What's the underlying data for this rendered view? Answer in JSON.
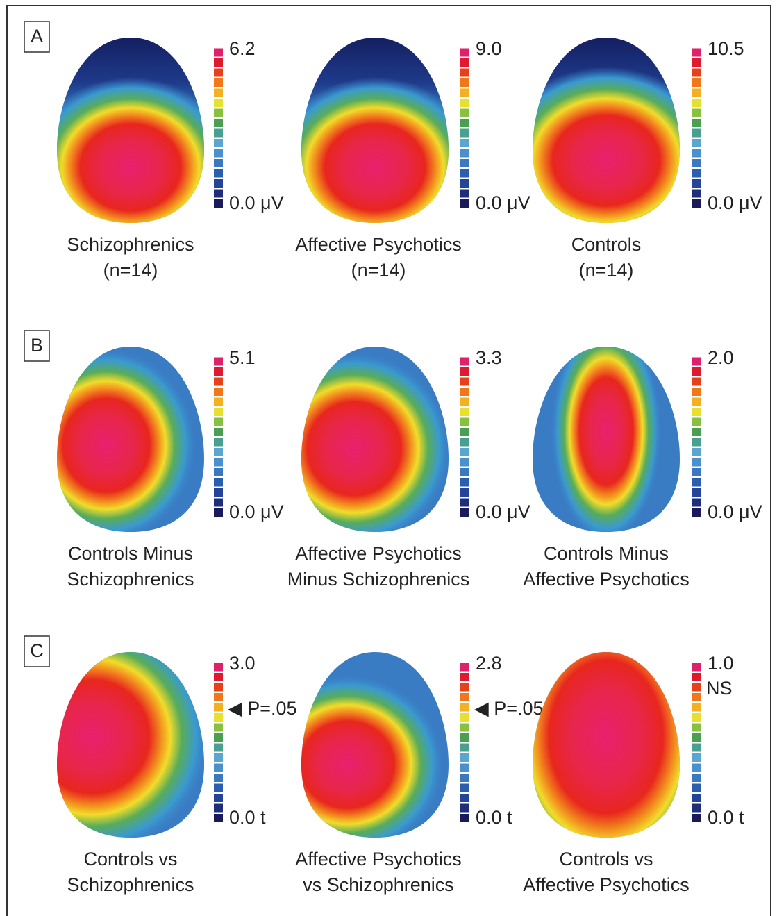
{
  "panels": [
    {
      "label": "A",
      "maps": [
        {
          "scale_max": "6.2",
          "scale_min": "0.0 μV",
          "caption": [
            "Schizophrenics",
            "(n=14)"
          ]
        },
        {
          "scale_max": "9.0",
          "scale_min": "0.0 μV",
          "caption": [
            "Affective Psychotics",
            "(n=14)"
          ]
        },
        {
          "scale_max": "10.5",
          "scale_min": "0.0 μV",
          "caption": [
            "Controls",
            "(n=14)"
          ]
        }
      ]
    },
    {
      "label": "B",
      "maps": [
        {
          "scale_max": "5.1",
          "scale_min": "0.0 μV",
          "caption": [
            "Controls Minus",
            "Schizophrenics"
          ]
        },
        {
          "scale_max": "3.3",
          "scale_min": "0.0 μV",
          "caption": [
            "Affective Psychotics",
            "Minus Schizophrenics"
          ]
        },
        {
          "scale_max": "2.0",
          "scale_min": "0.0 μV",
          "caption": [
            "Controls Minus",
            "Affective Psychotics"
          ]
        }
      ]
    },
    {
      "label": "C",
      "maps": [
        {
          "scale_max": "3.0",
          "scale_min": "0.0 t",
          "annotation": "◀ P=.05",
          "caption": [
            "Controls vs",
            "Schizophrenics"
          ]
        },
        {
          "scale_max": "2.8",
          "scale_min": "0.0 t",
          "annotation": "◀ P=.05",
          "caption": [
            "Affective Psychotics",
            "vs Schizophrenics"
          ]
        },
        {
          "scale_max": "1.0",
          "scale_min": "0.0 t",
          "annotation": "NS",
          "caption": [
            "Controls vs",
            "Affective Psychotics"
          ]
        }
      ]
    }
  ]
}
